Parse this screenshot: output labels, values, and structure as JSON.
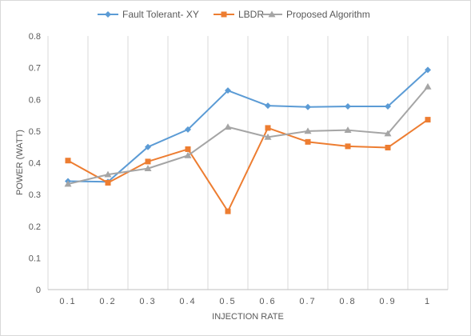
{
  "chart_data": {
    "type": "line",
    "title": "",
    "xlabel": "INJECTION RATE",
    "ylabel": "POWER (WATT)",
    "categories": [
      "0.1",
      "0.2",
      "0.3",
      "0.4",
      "0.5",
      "0.6",
      "0.7",
      "0.8",
      "0.9",
      "1"
    ],
    "ylim": [
      0,
      0.8
    ],
    "yticks": [
      "0",
      "0.1",
      "0.2",
      "0.3",
      "0.4",
      "0.5",
      "0.6",
      "0.7",
      "0.8"
    ],
    "grid": "vertical",
    "legend_position": "top",
    "series": [
      {
        "name": "Fault Tolerant- XY",
        "color": "#5b9bd5",
        "marker": "diamond",
        "values": [
          0.342,
          0.34,
          0.45,
          0.505,
          0.628,
          0.58,
          0.576,
          0.578,
          0.578,
          0.693
        ]
      },
      {
        "name": "LBDR",
        "color": "#ed7d31",
        "marker": "square",
        "values": [
          0.407,
          0.337,
          0.404,
          0.443,
          0.247,
          0.51,
          0.466,
          0.452,
          0.448,
          0.536
        ]
      },
      {
        "name": "Proposed Algorithm",
        "color": "#a5a5a5",
        "marker": "triangle",
        "values": [
          0.333,
          0.363,
          0.382,
          0.423,
          0.513,
          0.481,
          0.5,
          0.503,
          0.492,
          0.64
        ]
      }
    ]
  }
}
